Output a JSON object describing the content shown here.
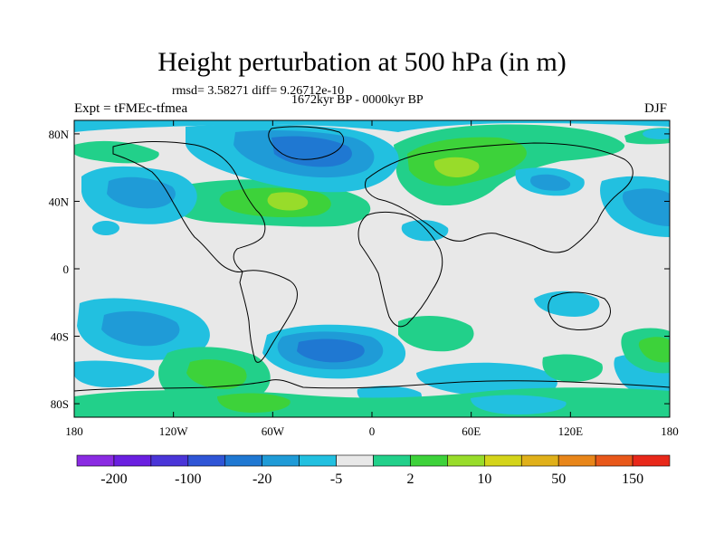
{
  "title": "Height perturbation at 500 hPa (in m)",
  "subtitle_stats": "rmsd= 3.58271 diff= 9.26712e-10",
  "subtitle_period": "1672kyr BP - 0000kyr BP",
  "left_label": "Expt = tFMEc-tfmea",
  "right_label": "DJF",
  "lat_ticks": [
    {
      "label": "80N",
      "lat": 80
    },
    {
      "label": "40N",
      "lat": 40
    },
    {
      "label": "0",
      "lat": 0
    },
    {
      "label": "40S",
      "lat": -40
    },
    {
      "label": "80S",
      "lat": -80
    }
  ],
  "lon_ticks": [
    {
      "label": "180",
      "lon": -180
    },
    {
      "label": "120W",
      "lon": -120
    },
    {
      "label": "60W",
      "lon": -60
    },
    {
      "label": "0",
      "lon": 0
    },
    {
      "label": "60E",
      "lon": 60
    },
    {
      "label": "120E",
      "lon": 120
    },
    {
      "label": "180",
      "lon": 180
    }
  ],
  "colorbar": {
    "colors": [
      "#8a2be2",
      "#6a1fe0",
      "#4a35d8",
      "#2f55d6",
      "#1f78d2",
      "#1f9bd7",
      "#22c0e0",
      "#e8e8e8",
      "#22d08a",
      "#3dd23a",
      "#98dc2a",
      "#d4d41a",
      "#e0b01a",
      "#e8861a",
      "#e8581a",
      "#e8281a"
    ],
    "labels": [
      {
        "text": "-200",
        "boundary": 1
      },
      {
        "text": "-100",
        "boundary": 3
      },
      {
        "text": "-20",
        "boundary": 5
      },
      {
        "text": "-5",
        "boundary": 7
      },
      {
        "text": "2",
        "boundary": 9
      },
      {
        "text": "10",
        "boundary": 11
      },
      {
        "text": "50",
        "boundary": 13
      },
      {
        "text": "150",
        "boundary": 15
      }
    ]
  }
}
